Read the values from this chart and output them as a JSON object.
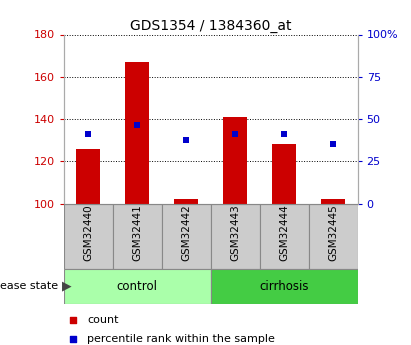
{
  "title": "GDS1354 / 1384360_at",
  "samples": [
    "GSM32440",
    "GSM32441",
    "GSM32442",
    "GSM32443",
    "GSM32444",
    "GSM32445"
  ],
  "red_bar_values": [
    126,
    167,
    102,
    141,
    128,
    102
  ],
  "blue_square_values": [
    133,
    137,
    130,
    133,
    133,
    128
  ],
  "bar_bottom": 100,
  "ylim_left": [
    100,
    180
  ],
  "ylim_right": [
    0,
    100
  ],
  "yticks_left": [
    100,
    120,
    140,
    160,
    180
  ],
  "yticks_right": [
    0,
    25,
    50,
    75,
    100
  ],
  "yticklabels_right": [
    "0",
    "25",
    "50",
    "75",
    "100%"
  ],
  "red_color": "#cc0000",
  "blue_color": "#0000cc",
  "bar_width": 0.5,
  "group_control_color": "#aaffaa",
  "group_cirrhosis_color": "#44cc44",
  "sample_box_color": "#cccccc",
  "disease_state_label": "disease state",
  "legend_count": "count",
  "legend_percentile": "percentile rank within the sample",
  "background_color": "#ffffff",
  "tick_label_color_left": "#cc0000",
  "tick_label_color_right": "#0000cc"
}
